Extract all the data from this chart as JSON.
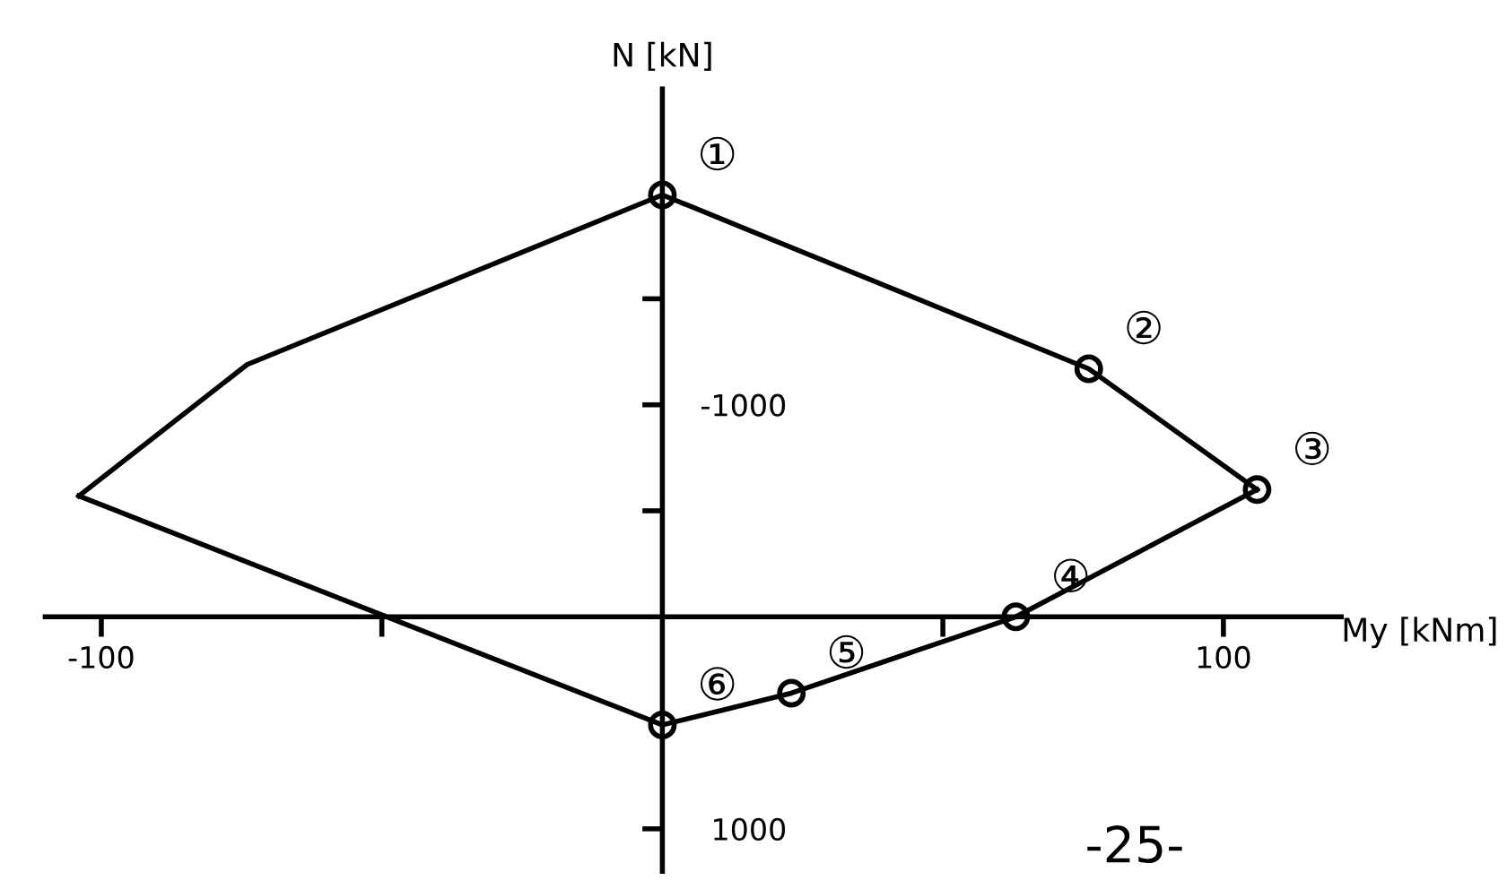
{
  "chart_data": {
    "type": "line",
    "xlabel": "My [kNm]",
    "ylabel": "N [kN]",
    "series": [
      {
        "color": "#000000",
        "marker": "none",
        "x": [
          -104,
          -74,
          0,
          76,
          106
        ],
        "values": [
          -570,
          -1190,
          -1990,
          -1170,
          -600
        ]
      },
      {
        "color": "#000000",
        "marker": "none",
        "x": [
          -104,
          0,
          23,
          63,
          106
        ],
        "values": [
          -570,
          510,
          360,
          0,
          -600
        ]
      },
      {
        "type": "scatter",
        "color": "#000000",
        "marker": "circle",
        "x": [
          0,
          76,
          106,
          63,
          23,
          0
        ],
        "values": [
          -1990,
          -1170,
          -600,
          0,
          360,
          510
        ]
      }
    ],
    "xlim": [
      -110,
      121
    ],
    "ylim": [
      1200,
      -2490
    ],
    "xticks": [
      {
        "value": -100,
        "label": "-100"
      },
      {
        "value": -50,
        "label": null
      },
      {
        "value": 50,
        "label": null
      },
      100
    ],
    "yticks": [
      {
        "value": -1500,
        "label": null
      },
      -1000,
      {
        "value": -500,
        "label": null
      },
      1000
    ],
    "annotations": [
      {
        "text": "①",
        "x": 0,
        "y": -1990
      },
      {
        "text": "②",
        "x": 76,
        "y": -1170
      },
      {
        "text": "③",
        "x": 106,
        "y": -600
      },
      {
        "text": "④",
        "x": 63,
        "y": 0
      },
      {
        "text": "⑤",
        "x": 23,
        "y": 360
      },
      {
        "text": "⑥",
        "x": 0,
        "y": 510
      },
      "-25-"
    ],
    "grid": false,
    "legend": false
  }
}
